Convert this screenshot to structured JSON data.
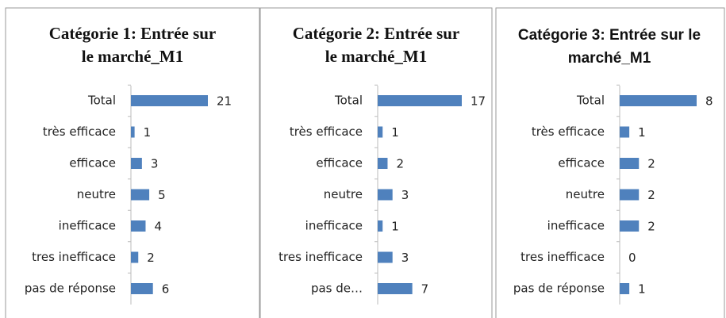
{
  "chart_data": [
    {
      "type": "bar",
      "title": "Catégorie 1: Entrée sur le marché_M1",
      "color": "#4f81bd",
      "categories": [
        "Total",
        "très efficace",
        "efficace",
        "neutre",
        "inefficace",
        "tres inefficace",
        "pas de réponse"
      ],
      "values": [
        21,
        1,
        3,
        5,
        4,
        2,
        6
      ]
    },
    {
      "type": "bar",
      "title": "Catégorie 2: Entrée sur le marché_M1",
      "color": "#4f81bd",
      "categories": [
        "Total",
        "très efficace",
        "efficace",
        "neutre",
        "inefficace",
        "tres inefficace",
        "pas de…"
      ],
      "values": [
        17,
        1,
        2,
        3,
        1,
        3,
        7
      ]
    },
    {
      "type": "bar",
      "title": "Catégorie 3: Entrée sur le marché_M1",
      "color": "#4f81bd",
      "categories": [
        "Total",
        "très efficace",
        "efficace",
        "neutre",
        "inefficace",
        "tres inefficace",
        "pas de réponse"
      ],
      "values": [
        8,
        1,
        2,
        2,
        2,
        0,
        1
      ]
    }
  ]
}
